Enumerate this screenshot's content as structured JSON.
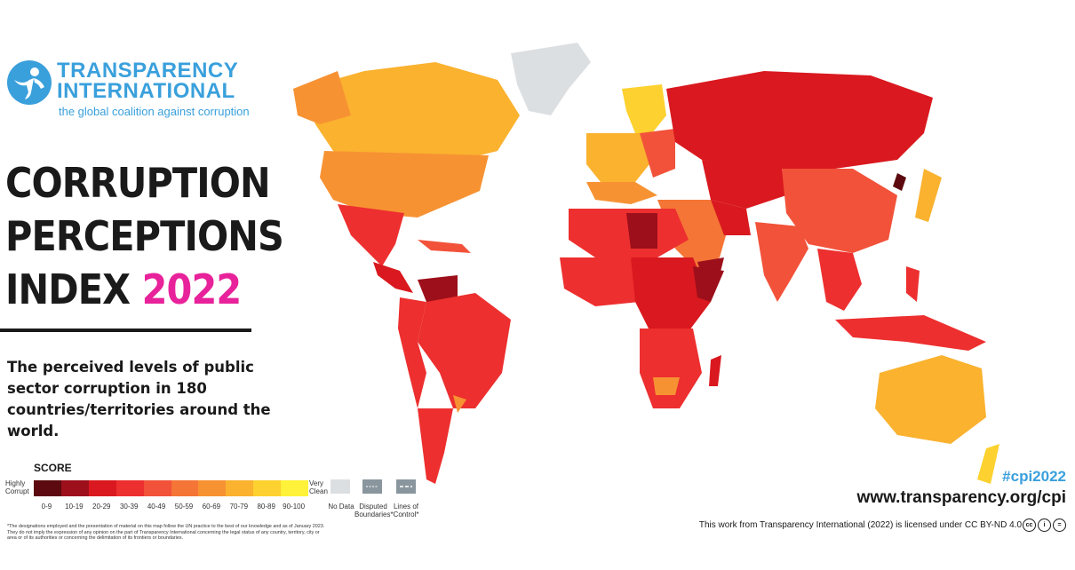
{
  "logo": {
    "name_line1": "TRANSPARENCY",
    "name_line2": "INTERNATIONAL",
    "tagline": "the global coalition against corruption",
    "icon": "person-in-circle-icon",
    "color": "#3aa0dc"
  },
  "title": {
    "line1": "CORRUPTION",
    "line2": "PERCEPTIONS",
    "line3_prefix": "INDEX",
    "year": "2022",
    "year_color": "#e8229a"
  },
  "subtitle": "The perceived levels of public sector corruption in 180 countries/territories around the world.",
  "legend": {
    "heading": "SCORE",
    "low_label_1": "Highly",
    "low_label_2": "Corrupt",
    "high_label_1": "Very",
    "high_label_2": "Clean",
    "bins": [
      {
        "label": "0-9",
        "color": "#5c0a0f"
      },
      {
        "label": "10-19",
        "color": "#9c0f1b"
      },
      {
        "label": "20-29",
        "color": "#d9191f"
      },
      {
        "label": "30-39",
        "color": "#ed2f2f"
      },
      {
        "label": "40-49",
        "color": "#f2523a"
      },
      {
        "label": "50-59",
        "color": "#f47535"
      },
      {
        "label": "60-69",
        "color": "#f79233"
      },
      {
        "label": "70-79",
        "color": "#fab22f"
      },
      {
        "label": "80-89",
        "color": "#fdd12f"
      },
      {
        "label": "90-100",
        "color": "#fff238"
      }
    ],
    "no_data_label": "No Data",
    "no_data_color": "#dcdfe1",
    "disputed_label_1": "Disputed",
    "disputed_label_2": "Boundaries*",
    "control_label_1": "Lines of",
    "control_label_2": "Control*",
    "boundary_swatch_color": "#8a969d"
  },
  "disclaimer": "*The designations employed and the presentation of material on this map follow the UN practice to the best of our knowledge and as of January 2023. They do not imply the expression of any opinion on the part of Transparency International concerning the legal status of any country, territory, city or area or of its authorities or concerning the delimitation of its frontiers or boundaries.",
  "hashtag": "#cpi2022",
  "url": "www.transparency.org/cpi",
  "license": "This work from Transparency International (2022) is licensed under CC BY-ND 4.0",
  "license_icons": [
    "cc-icon",
    "by-icon",
    "nd-icon"
  ]
}
